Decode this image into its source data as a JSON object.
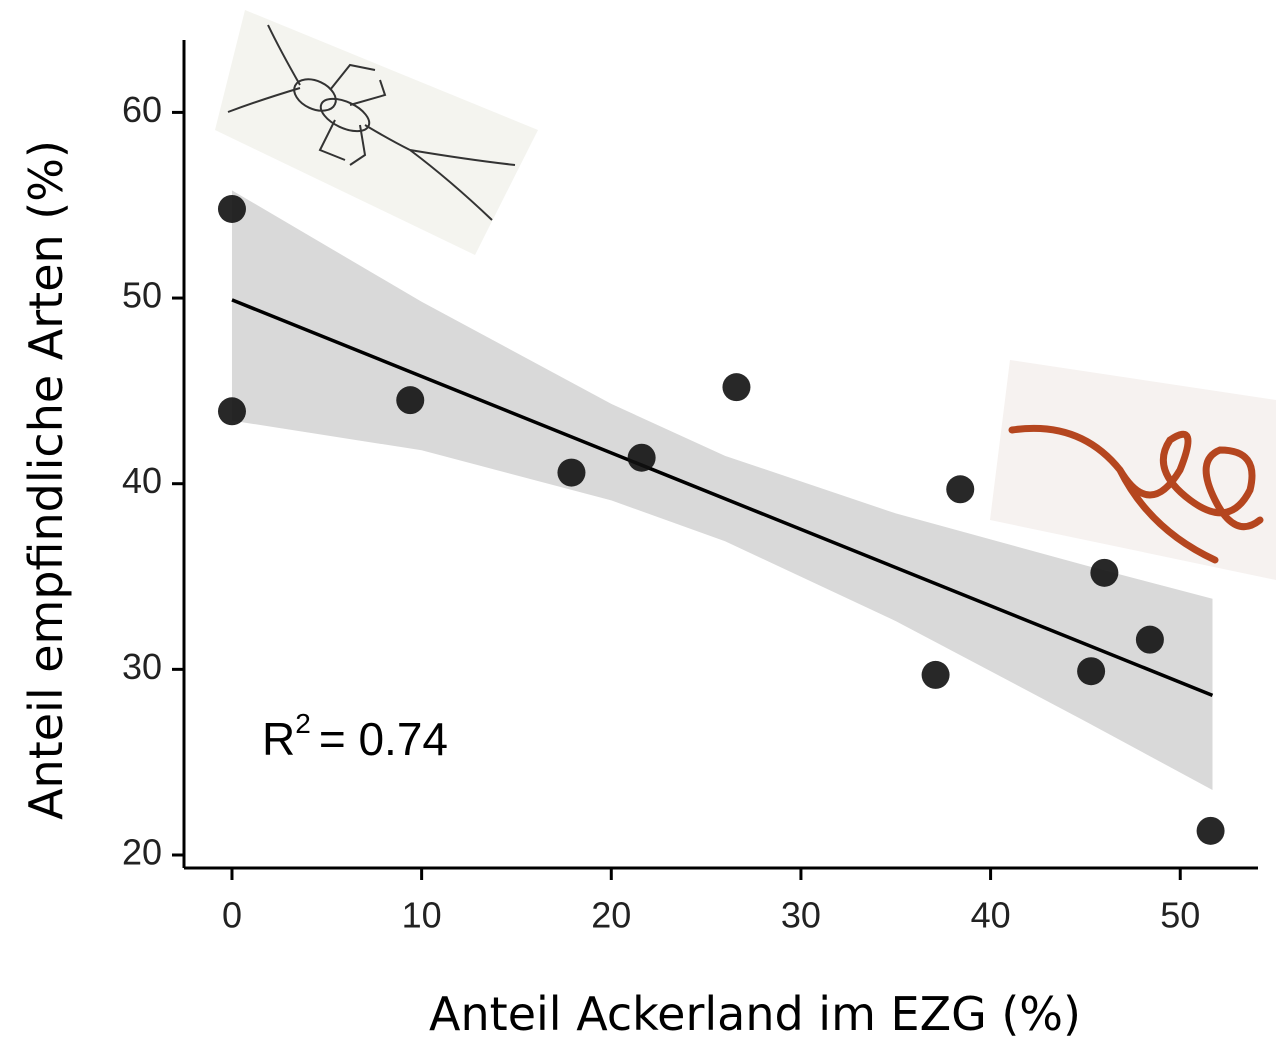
{
  "chart_data": {
    "type": "scatter",
    "x_label": "Anteil Ackerland im EZG (%)",
    "y_label": "Anteil empfindliche Arten (%)",
    "x": [
      0,
      0,
      9.4,
      17.9,
      21.6,
      26.6,
      37.1,
      38.4,
      45.3,
      46.0,
      48.4,
      51.6
    ],
    "values": [
      54.8,
      43.9,
      44.5,
      40.6,
      41.4,
      45.2,
      29.7,
      39.7,
      29.9,
      35.2,
      31.6,
      21.3
    ],
    "color": "#111111",
    "fit": {
      "x": [
        0,
        51.7
      ],
      "y": [
        49.9,
        28.6
      ],
      "color": "#000000"
    },
    "band": {
      "x": [
        0,
        10,
        20,
        26,
        35,
        45,
        51.7
      ],
      "upper": [
        55.8,
        49.8,
        44.3,
        41.5,
        38.4,
        35.6,
        33.8
      ],
      "lower": [
        43.4,
        41.8,
        39.1,
        36.9,
        32.6,
        27.2,
        23.5
      ],
      "color": "#d9d9d9"
    },
    "annotation": {
      "text": "R",
      "superscript": "2",
      "value_text": "= 0.74"
    },
    "xlim": [
      -2.53,
      54.1
    ],
    "ylim": [
      19.3,
      63.9
    ],
    "xticks": [
      0,
      10,
      20,
      30,
      40,
      50
    ],
    "yticks": [
      20,
      30,
      40,
      50,
      60
    ]
  }
}
